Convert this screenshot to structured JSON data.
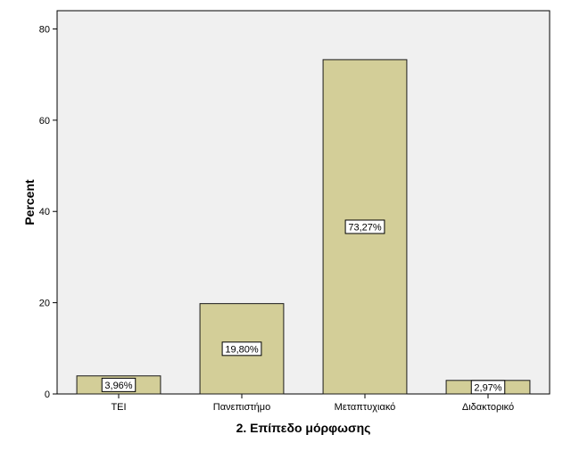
{
  "chart_data": {
    "type": "bar",
    "xlabel": "2. Επίπεδο μόρφωσης",
    "ylabel": "Percent",
    "categories": [
      "ΤΕΙ",
      "Πανεπιστήμο",
      "Μεταπτυχιακό",
      "Διδακτορικό"
    ],
    "values": [
      3.96,
      19.8,
      73.27,
      2.97
    ],
    "data_labels": [
      "3,96%",
      "19,80%",
      "73,27%",
      "2,97%"
    ],
    "ylim": [
      0,
      84
    ],
    "yticks": [
      0,
      20,
      40,
      60,
      80
    ],
    "ytick_labels": [
      "0",
      "20",
      "40",
      "60",
      "80"
    ],
    "grid": false,
    "colors": {
      "bar_fill": "#d3ce98",
      "bar_stroke": "#1a1a1a",
      "plot_background": "#f0f0f0",
      "label_box": "#ffffff"
    }
  }
}
